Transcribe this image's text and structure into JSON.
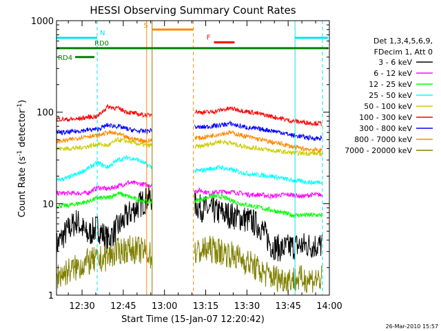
{
  "chart_data": {
    "type": "line",
    "title": "HESSI Observing Summary Count Rates",
    "xlabel": "Start Time (15-Jan-07 12:20:42)",
    "ylabel_base": "Count Rate (s",
    "ylabel_sup1": "-1",
    "ylabel_mid": " detector",
    "ylabel_sup2": "-1",
    "ylabel_end": ")",
    "yscale": "log",
    "ylim": [
      1,
      1000
    ],
    "xlim_minutes": [
      20.7,
      120
    ],
    "y_ticks": [
      {
        "value": 1,
        "label": "1"
      },
      {
        "value": 10,
        "label": "10"
      },
      {
        "value": 100,
        "label": "100"
      },
      {
        "value": 1000,
        "label": "1000"
      }
    ],
    "x_ticks": [
      {
        "minute": 30,
        "label": "12:30"
      },
      {
        "minute": 45,
        "label": "12:45"
      },
      {
        "minute": 60,
        "label": "13:00"
      },
      {
        "minute": 75,
        "label": "13:15"
      },
      {
        "minute": 90,
        "label": "13:30"
      },
      {
        "minute": 105,
        "label": "13:45"
      },
      {
        "minute": 120,
        "label": "14:00"
      }
    ],
    "legend_header": [
      "Det 1,3,4,5,6,9,",
      "FDecim 1, Att 0"
    ],
    "series": [
      {
        "name": "3 - 6 keV",
        "color": "#000000",
        "values": [
          3.5,
          5.0,
          6.5,
          4.5,
          5.5,
          4.0,
          5.5,
          7.5,
          9.5,
          11.5,
          12.0,
          13.0,
          12.5,
          11.0,
          9.0,
          8.5,
          8.0,
          7.5,
          7.0,
          6.5,
          5.5,
          3.5,
          3.2,
          3.4,
          3.5,
          3.5,
          3.5
        ]
      },
      {
        "name": "6 - 12 keV",
        "color": "#ff00ff",
        "values": [
          13.0,
          13.0,
          13.0,
          13.0,
          15.0,
          14.5,
          15.5,
          17.0,
          16.5,
          16.0,
          15.5,
          16.0,
          14.0,
          13.5,
          14.0,
          13.0,
          13.5,
          13.5,
          13.0,
          12.5,
          12.5,
          12.0,
          12.5,
          12.5,
          12.0,
          12.5,
          12.5
        ]
      },
      {
        "name": "12 - 25 keV",
        "color": "#00ff00",
        "values": [
          9.5,
          9.5,
          10.0,
          10.5,
          11.5,
          11.5,
          13.0,
          12.0,
          11.0,
          10.5,
          10.5,
          10.0,
          10.0,
          10.5,
          11.0,
          12.0,
          12.0,
          11.0,
          10.0,
          9.5,
          9.0,
          8.5,
          8.0,
          7.5,
          7.5,
          7.5,
          7.5
        ]
      },
      {
        "name": "25 - 50 keV",
        "color": "#00ffff",
        "values": [
          18.0,
          19.0,
          21.0,
          24.0,
          28.0,
          25.0,
          30.0,
          32.0,
          30.0,
          26.0,
          24.0,
          25.0,
          23.0,
          22.5,
          23.0,
          24.0,
          25.0,
          23.5,
          22.0,
          21.0,
          20.5,
          20.0,
          19.0,
          18.0,
          17.5,
          17.0,
          17.5
        ]
      },
      {
        "name": "50 - 100 keV",
        "color": "#cccc00",
        "values": [
          40.0,
          40.0,
          40.5,
          42.0,
          45.0,
          43.0,
          50.0,
          48.0,
          45.0,
          43.0,
          45.0,
          42.0,
          44.0,
          42.0,
          42.0,
          45.0,
          48.0,
          46.0,
          43.0,
          41.0,
          40.0,
          38.0,
          37.0,
          36.0,
          35.5,
          35.5,
          35.0
        ]
      },
      {
        "name": "100 - 300 keV",
        "color": "#ff0000",
        "values": [
          85.0,
          83.0,
          84.0,
          88.0,
          90.0,
          115.0,
          110.0,
          100.0,
          95.0,
          92.0,
          105.0,
          115.0,
          110.0,
          105.0,
          100.0,
          100.0,
          105.0,
          110.0,
          105.0,
          100.0,
          95.0,
          90.0,
          85.0,
          80.0,
          78.0,
          76.0,
          75.0
        ]
      },
      {
        "name": "300 - 800 keV",
        "color": "#0000ff",
        "values": [
          60.0,
          60.0,
          62.0,
          64.0,
          65.0,
          72.0,
          70.0,
          65.0,
          62.0,
          62.0,
          70.0,
          75.0,
          72.0,
          70.0,
          68.0,
          70.0,
          72.0,
          75.0,
          70.0,
          67.0,
          65.0,
          63.0,
          60.0,
          56.0,
          54.0,
          52.0,
          52.0
        ]
      },
      {
        "name": "800 - 7000 keV",
        "color": "#ff8800",
        "values": [
          48.0,
          49.0,
          52.0,
          55.0,
          55.0,
          60.0,
          58.0,
          52.0,
          50.0,
          48.0,
          55.0,
          62.0,
          58.0,
          55.0,
          52.0,
          55.0,
          58.0,
          60.0,
          56.0,
          53.0,
          50.0,
          47.0,
          45.0,
          42.0,
          40.0,
          39.0,
          38.0
        ]
      },
      {
        "name": "7000 - 20000 keV",
        "color": "#808000",
        "values": [
          1.6,
          1.8,
          2.0,
          2.3,
          2.4,
          2.6,
          3.0,
          3.2,
          3.1,
          2.9,
          2.0,
          2.2,
          2.5,
          2.8,
          3.0,
          3.2,
          3.0,
          2.8,
          2.5,
          2.2,
          1.8,
          1.6,
          1.5,
          1.5,
          1.5,
          1.5,
          1.5
        ]
      }
    ],
    "segments": [
      {
        "start": 20.7,
        "end": 55.5
      },
      {
        "start": 71.0,
        "end": 117.5
      }
    ],
    "annotations": [
      {
        "label": "N",
        "color": "#00e5ee",
        "level": 650,
        "start": 20.7,
        "end": 35.5
      },
      {
        "label": "N",
        "color": "#00e5ee",
        "level": 650,
        "start": 107.5,
        "end": 119.5
      },
      {
        "label": "RD0",
        "color": "#008000",
        "level": 500,
        "start": 20.7,
        "end": 119.5
      },
      {
        "label": "RD4",
        "color": "#008000",
        "level": 400,
        "start": 27.5,
        "end": 34.5
      },
      {
        "label": "S",
        "color": "#ff8800",
        "level": 800,
        "start": 55.5,
        "end": 70.5
      },
      {
        "label": "F",
        "color": "#ff0000",
        "level": 580,
        "start": 78.0,
        "end": 85.5
      }
    ],
    "markers": [
      {
        "minute": 20.7,
        "color": "#00e5ee",
        "style": "dashed"
      },
      {
        "minute": 35.5,
        "color": "#00e5ee",
        "style": "dashed"
      },
      {
        "minute": 53.5,
        "color": "#ff8800",
        "style": "solid"
      },
      {
        "minute": 55.5,
        "color": "#808000",
        "style": "solid"
      },
      {
        "minute": 70.5,
        "color": "#ff8800",
        "style": "dashed"
      },
      {
        "minute": 107.5,
        "color": "#00e5ee",
        "style": "solid"
      },
      {
        "minute": 117.5,
        "color": "#00e5ee",
        "style": "dashed"
      }
    ],
    "grid": false,
    "legend_placement": "right"
  },
  "footer_date": "26-Mar-2010 15:57"
}
